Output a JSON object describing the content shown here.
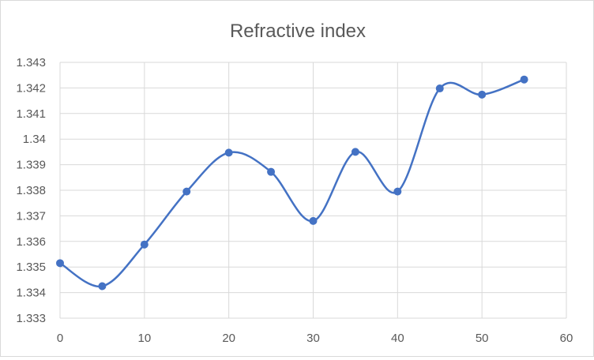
{
  "chart_data": {
    "type": "line",
    "title": "Refractive index",
    "xlabel": "",
    "ylabel": "",
    "xlim": [
      0,
      60
    ],
    "ylim": [
      1.333,
      1.343
    ],
    "x_ticks": [
      0,
      10,
      20,
      30,
      40,
      50,
      60
    ],
    "x_tick_labels": [
      "0",
      "10",
      "20",
      "30",
      "40",
      "50",
      "60"
    ],
    "y_ticks": [
      1.333,
      1.334,
      1.335,
      1.336,
      1.337,
      1.338,
      1.339,
      1.34,
      1.341,
      1.342,
      1.343
    ],
    "y_tick_labels": [
      "1.333",
      "1.334",
      "1.335",
      "1.336",
      "1.337",
      "1.338",
      "1.339",
      "1.34",
      "1.341",
      "1.342",
      "1.343"
    ],
    "grid": true,
    "smooth": true,
    "series": [
      {
        "color": "#4472c4",
        "x": [
          0,
          5,
          10,
          15,
          20,
          25,
          30,
          35,
          40,
          45,
          50,
          55
        ],
        "y": [
          1.33515,
          1.33425,
          1.33588,
          1.33795,
          1.33947,
          1.33872,
          1.3368,
          1.3395,
          1.33795,
          1.34198,
          1.34174,
          1.34233
        ]
      }
    ]
  }
}
